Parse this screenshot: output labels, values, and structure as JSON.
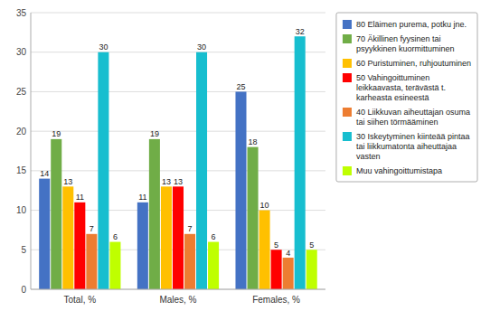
{
  "chart_data": {
    "type": "bar",
    "categories": [
      "Total, %",
      "Males, %",
      "Females, %"
    ],
    "series": [
      {
        "name": "80 Eläimen purema, potku jne.",
        "color": "#4472C4",
        "values": [
          14,
          11,
          25
        ]
      },
      {
        "name": "70 Äkillinen fyysinen tai\npsyykkinen kuormittuminen",
        "color": "#70AD47",
        "values": [
          19,
          19,
          18
        ]
      },
      {
        "name": "60 Puristuminen, ruhjoutuminen",
        "color": "#FFC000",
        "values": [
          13,
          13,
          10
        ]
      },
      {
        "name": "50 Vahingoittuminen\nleikkaavasta, terävästä t.\nkarheasta esineestä",
        "color": "#FF0000",
        "values": [
          11,
          13,
          5
        ]
      },
      {
        "name": "40 Liikkuvan aiheuttajan osuma\ntai siihen törmääminen",
        "color": "#ED7D31",
        "values": [
          7,
          7,
          4
        ]
      },
      {
        "name": "30 Iskeytyminen kiinteää pintaa\ntai liikkumatonta aiheuttajaa\nvasten",
        "color": "#17BECF",
        "values": [
          30,
          30,
          32
        ]
      },
      {
        "name": "Muu vahingoittumistapa",
        "color": "#BFFF00",
        "values": [
          6,
          6,
          5
        ]
      }
    ],
    "ylim": [
      0,
      35
    ],
    "yticks": [
      0,
      5,
      10,
      15,
      20,
      25,
      30,
      35
    ],
    "grid": true,
    "legend": "right",
    "data_labels": true
  }
}
